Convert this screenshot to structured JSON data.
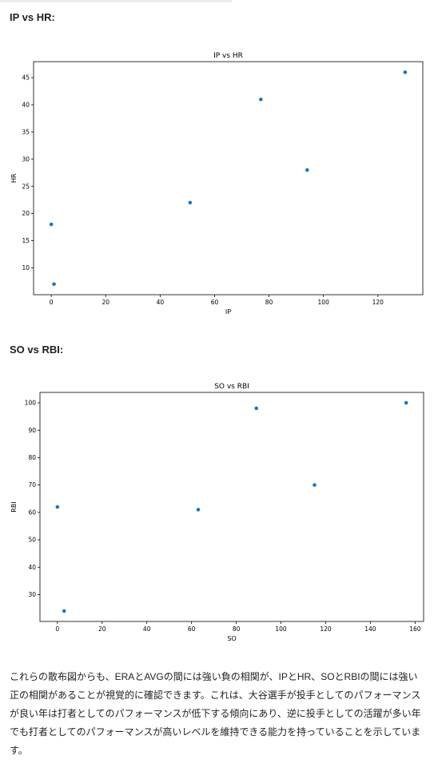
{
  "sections": [
    {
      "heading": "IP vs HR:"
    },
    {
      "heading": "SO vs RBI:"
    }
  ],
  "chart_data": [
    {
      "type": "scatter",
      "title": "IP vs HR",
      "xlabel": "IP",
      "ylabel": "HR",
      "x": [
        0,
        1,
        51,
        77,
        94,
        130
      ],
      "y": [
        18,
        7,
        22,
        41,
        28,
        46
      ],
      "xlim": [
        -6.5,
        136.5
      ],
      "ylim": [
        5.05,
        47.95
      ],
      "xticks": [
        0,
        20,
        40,
        60,
        80,
        100,
        120
      ],
      "yticks": [
        10,
        15,
        20,
        25,
        30,
        35,
        40,
        45
      ],
      "grid": false,
      "point_color": "#1f77b4"
    },
    {
      "type": "scatter",
      "title": "SO vs RBI",
      "xlabel": "SO",
      "ylabel": "RBI",
      "x": [
        0,
        3,
        63,
        89,
        115,
        156
      ],
      "y": [
        62,
        24,
        61,
        98,
        70,
        100
      ],
      "xlim": [
        -7.8,
        163.8
      ],
      "ylim": [
        20.2,
        103.8
      ],
      "xticks": [
        0,
        20,
        40,
        60,
        80,
        100,
        120,
        140,
        160
      ],
      "yticks": [
        30,
        40,
        50,
        60,
        70,
        80,
        90,
        100
      ],
      "grid": false,
      "point_color": "#1f77b4"
    }
  ],
  "summary": "これらの散布図からも、ERAとAVGの間には強い負の相関が、IPとHR、SOとRBIの間には強い正の相関があることが視覚的に確認できます。これは、大谷選手が投手としてのパフォーマンスが良い年は打者としてのパフォーマンスが低下する傾向にあり、逆に投手としての活躍が多い年でも打者としてのパフォーマンスが高いレベルを維持できる能力を持っていることを示しています。"
}
